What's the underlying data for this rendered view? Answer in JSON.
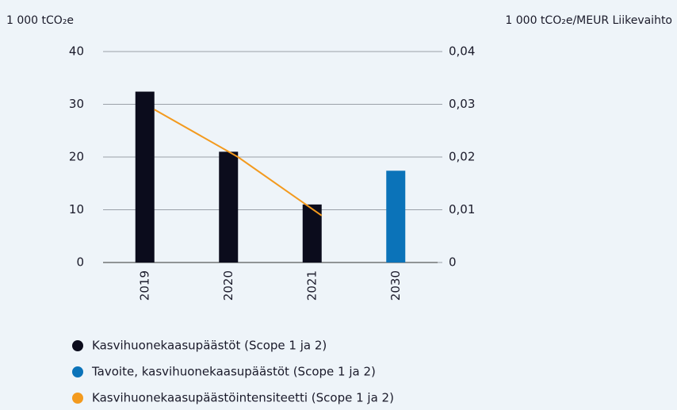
{
  "chart_data": {
    "type": "bar",
    "y_label": "1 000 tCO₂e",
    "y2_label": "1 000 tCO₂e/MEUR Liikevaihto",
    "categories": [
      "2019",
      "2020",
      "2021",
      "2030"
    ],
    "series": [
      {
        "name": "Kasvihuonekaasupäästöt (Scope 1 ja 2)",
        "color": "#0b0c1c",
        "type": "bar",
        "values": [
          32.4,
          21,
          11,
          null
        ]
      },
      {
        "name": "Tavoite, kasvihuonekaasupäästöt (Scope 1 ja 2)",
        "color": "#0b73b9",
        "type": "bar",
        "values": [
          null,
          null,
          null,
          17.4
        ]
      },
      {
        "name": "Kasvihuonekaasupäästöintensiteetti (Scope 1 ja 2)",
        "color": "#f39a1e",
        "type": "line",
        "axis": "y2",
        "values": [
          0.029,
          0.02,
          0.0089,
          null
        ]
      }
    ],
    "ylim": [
      0,
      40
    ],
    "yticks": [
      0,
      10,
      20,
      30,
      40
    ],
    "y2lim": [
      0,
      0.04
    ],
    "y2ticks": [
      0,
      {
        "value": 0.01,
        "label": "0,01"
      },
      {
        "value": 0.02,
        "label": "0,02"
      },
      {
        "value": 0.03,
        "label": "0,03"
      },
      {
        "value": 0.04,
        "label": "0,04"
      }
    ],
    "grid": true,
    "legend": "bottom"
  }
}
